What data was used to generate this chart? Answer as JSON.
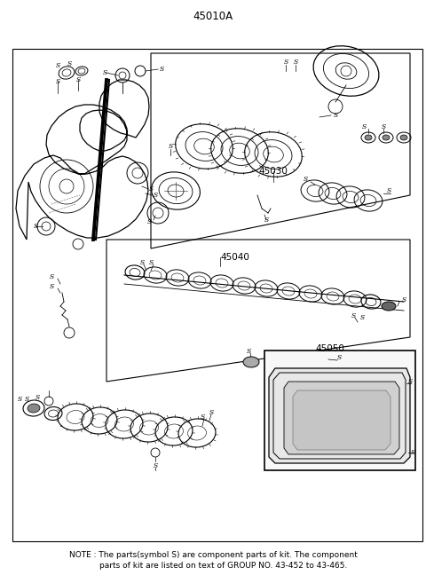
{
  "title": "45010A",
  "bg_color": "#ffffff",
  "note_text1": "NOTE : The parts(symbol S) are component parts of kit. The component",
  "note_text2": "        parts of kit are listed on text of GROUP NO. 43-452 to 43-465.",
  "labels": {
    "main": "45010A",
    "sub1": "45030",
    "sub2": "45040",
    "sub3": "45050"
  },
  "figsize": [
    4.8,
    6.57
  ],
  "dpi": 100,
  "note_fontsize": 7.0,
  "label_fontsize": 8.5,
  "border": [
    14,
    55,
    462,
    555
  ]
}
